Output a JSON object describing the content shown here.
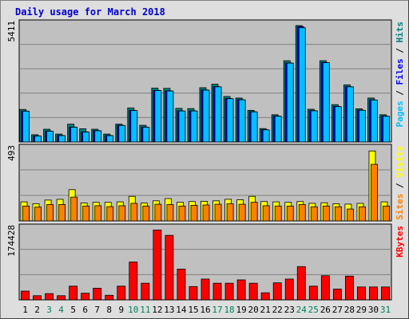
{
  "chart_data": {
    "type": "bar",
    "title": "Daily usage for March 2018",
    "categories": [
      "1",
      "2",
      "3",
      "4",
      "5",
      "6",
      "7",
      "8",
      "9",
      "10",
      "11",
      "12",
      "13",
      "14",
      "15",
      "16",
      "17",
      "18",
      "19",
      "20",
      "21",
      "22",
      "23",
      "24",
      "25",
      "26",
      "27",
      "28",
      "29",
      "30",
      "31"
    ],
    "weekend_days": [
      "3",
      "4",
      "10",
      "11",
      "17",
      "18",
      "24",
      "25",
      "31"
    ],
    "colors": {
      "pages": "#008080",
      "files": "#0000ff",
      "hits": "#00c0ff",
      "sites": "#ff8000",
      "visits": "#ffff00",
      "kbytes": "#ff0000",
      "title": "#0000cc",
      "plot_bg": "#c0c0c0",
      "frame_bg": "#dedede",
      "weekend_label": "#00805c"
    },
    "panels": [
      {
        "name": "hits-files-pages",
        "max_label": "5411",
        "ymax": 5411,
        "legend": [
          "Pages",
          "Files",
          "Hits"
        ],
        "series": [
          {
            "name": "Pages",
            "values": [
              1480,
              330,
              580,
              360,
              810,
              600,
              580,
              360,
              810,
              1550,
              760,
              2450,
              2440,
              1530,
              1520,
              2470,
              2630,
              2070,
              2000,
              1440,
              610,
              1240,
              3700,
              5300,
              1490,
              3700,
              1700,
              2600,
              1510,
              2000,
              1240
            ]
          },
          {
            "name": "Files",
            "values": [
              1410,
              280,
              500,
              300,
              680,
              460,
              520,
              300,
              760,
              1440,
              680,
              2350,
              2330,
              1420,
              1420,
              2370,
              2520,
              1980,
              1930,
              1380,
              560,
              1180,
              3600,
              5250,
              1430,
              3620,
              1620,
              2520,
              1450,
              1920,
              1180
            ]
          },
          {
            "name": "Hits",
            "values": [
              1400,
              270,
              490,
              290,
              670,
              450,
              510,
              290,
              750,
              1430,
              670,
              2340,
              2320,
              1410,
              1410,
              2360,
              2510,
              1970,
              1920,
              1370,
              550,
              1170,
              3590,
              5200,
              1420,
              3610,
              1610,
              2510,
              1440,
              1910,
              1170
            ]
          }
        ]
      },
      {
        "name": "visits-sites",
        "max_label": "493",
        "ymax": 493,
        "legend": [
          "Sites",
          "Visits"
        ],
        "series": [
          {
            "name": "Visits",
            "values": [
              128,
              115,
              140,
              145,
              210,
              120,
              125,
              125,
              128,
              165,
              120,
              135,
              150,
              125,
              130,
              132,
              135,
              145,
              142,
              165,
              130,
              128,
              125,
              130,
              118,
              122,
              115,
              113,
              118,
              470,
              128
            ]
          },
          {
            "name": "Sites",
            "values": [
              100,
              93,
              110,
              110,
              160,
              100,
              102,
              96,
              102,
              118,
              100,
              112,
              110,
              100,
              105,
              107,
              112,
              115,
              112,
              125,
              102,
              100,
              100,
              110,
              95,
              100,
              95,
              80,
              95,
              380,
              100
            ]
          }
        ]
      },
      {
        "name": "kbytes",
        "max_label": "174428",
        "ymax": 174428,
        "legend": [
          "KBytes"
        ],
        "series": [
          {
            "name": "KBytes",
            "values": [
              21000,
              10000,
              15000,
              10000,
              33000,
              16000,
              28000,
              11000,
              33000,
              91000,
              40000,
              168000,
              155000,
              74000,
              32000,
              50000,
              40000,
              40000,
              48000,
              40000,
              17000,
              41000,
              50000,
              80000,
              33000,
              58000,
              26000,
              57000,
              31000,
              31000,
              31000
            ]
          }
        ]
      }
    ]
  }
}
